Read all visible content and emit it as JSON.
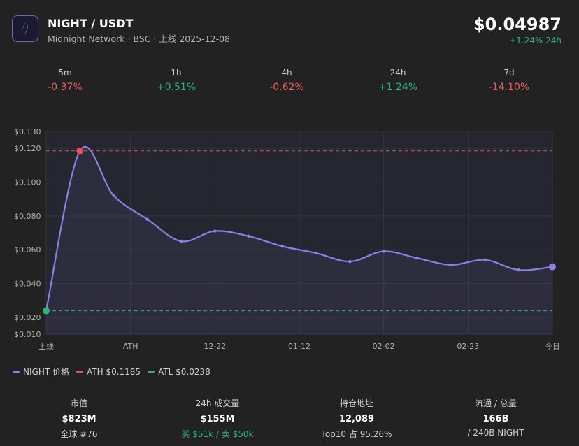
{
  "header": {
    "pair": "NIGHT / USDT",
    "subtitle": "Midnight Network · BSC · 上线 2025-12-08",
    "price": "$0.04987",
    "change_24h": "+1.24% 24h",
    "logo_icon": "moon-leaf-icon"
  },
  "timeframes": [
    {
      "label": "5m",
      "value": "-0.37%",
      "trend": "neg"
    },
    {
      "label": "1h",
      "value": "+0.51%",
      "trend": "pos"
    },
    {
      "label": "4h",
      "value": "-0.62%",
      "trend": "neg"
    },
    {
      "label": "24h",
      "value": "+1.24%",
      "trend": "pos"
    },
    {
      "label": "7d",
      "value": "-14.10%",
      "trend": "neg"
    }
  ],
  "chart_data": {
    "type": "line",
    "title": "",
    "xlabel": "",
    "ylabel": "",
    "ylim": [
      0.01,
      0.13
    ],
    "yticks": [
      0.13,
      0.12,
      0.1,
      0.08,
      0.06,
      0.04,
      0.02,
      0.01
    ],
    "ytick_labels": [
      "$0.130",
      "$0.120",
      "$0.100",
      "$0.080",
      "$0.060",
      "$0.040",
      "$0.020",
      "$0.010"
    ],
    "xtick_labels": [
      "上线",
      "ATH",
      "12-22",
      "01-12",
      "02-02",
      "02-23",
      "今日"
    ],
    "grid": true,
    "series": [
      {
        "name": "NIGHT 价格",
        "color": "#8b7fe8",
        "values": [
          0.0238,
          0.1185,
          0.092,
          0.078,
          0.065,
          0.071,
          0.068,
          0.062,
          0.058,
          0.053,
          0.059,
          0.055,
          0.051,
          0.054,
          0.048,
          0.04987
        ]
      }
    ],
    "reference_lines": [
      {
        "name": "ATH $0.1185",
        "value": 0.1185,
        "color": "#e05555"
      },
      {
        "name": "ATL $0.0238",
        "value": 0.0238,
        "color": "#2fb37a"
      }
    ]
  },
  "legend": [
    {
      "label": "NIGHT 价格",
      "color": "#8b7fe8"
    },
    {
      "label": "ATH $0.1185",
      "color": "#e05555"
    },
    {
      "label": "ATL $0.0238",
      "color": "#2fb37a"
    }
  ],
  "stats": [
    {
      "title": "市值",
      "value": "$823M",
      "sub": "全球 #76"
    },
    {
      "title": "24h 成交量",
      "value": "$155M",
      "sub": "买 $51k / 卖 $50k"
    },
    {
      "title": "持仓地址",
      "value": "12,089",
      "sub": "Top10 占 95.26%"
    },
    {
      "title": "流通 / 总量",
      "value": "166B",
      "sub": "/ 240B NIGHT"
    }
  ]
}
